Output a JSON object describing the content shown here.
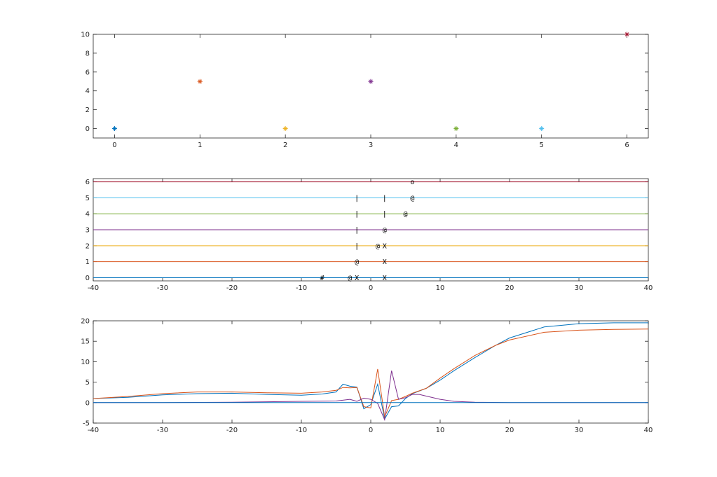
{
  "chart_data": [
    {
      "type": "scatter",
      "xlim": [
        -0.25,
        6.25
      ],
      "ylim": [
        -1,
        10
      ],
      "xticks": [
        0,
        1,
        2,
        3,
        4,
        5,
        6
      ],
      "yticks": [
        0,
        2,
        4,
        6,
        8,
        10
      ],
      "grid": false,
      "marker": "*",
      "points": [
        {
          "x": 0,
          "y": 0,
          "color": "#0072BD"
        },
        {
          "x": 1,
          "y": 5,
          "color": "#D95319"
        },
        {
          "x": 2,
          "y": 0,
          "color": "#EDB120"
        },
        {
          "x": 3,
          "y": 5,
          "color": "#7E2F8E"
        },
        {
          "x": 4,
          "y": 0,
          "color": "#77AC30"
        },
        {
          "x": 5,
          "y": 0,
          "color": "#4DBEEE"
        },
        {
          "x": 6,
          "y": 10,
          "color": "#A2142F"
        }
      ]
    },
    {
      "type": "line",
      "xlim": [
        -40,
        40
      ],
      "ylim": [
        -0.2,
        6.2
      ],
      "xticks": [
        -40,
        -30,
        -20,
        -10,
        0,
        10,
        20,
        30,
        40
      ],
      "yticks": [
        0,
        1,
        2,
        3,
        4,
        5,
        6
      ],
      "grid": false,
      "series": [
        {
          "y": 0,
          "color": "#0072BD"
        },
        {
          "y": 1,
          "color": "#D95319"
        },
        {
          "y": 2,
          "color": "#EDB120"
        },
        {
          "y": 3,
          "color": "#7E2F8E"
        },
        {
          "y": 4,
          "color": "#77AC30"
        },
        {
          "y": 5,
          "color": "#4DBEEE"
        },
        {
          "y": 6,
          "color": "#A2142F"
        }
      ],
      "annotations": [
        {
          "x": -7,
          "y": 0,
          "text": "#"
        },
        {
          "x": -3,
          "y": 0,
          "text": "@"
        },
        {
          "x": -2,
          "y": 0,
          "text": "X"
        },
        {
          "x": 2,
          "y": 0,
          "text": "X"
        },
        {
          "x": -2,
          "y": 1,
          "text": "@"
        },
        {
          "x": 2,
          "y": 1,
          "text": "X"
        },
        {
          "x": -2,
          "y": 2,
          "text": "|"
        },
        {
          "x": 1,
          "y": 2,
          "text": "@"
        },
        {
          "x": 2,
          "y": 2,
          "text": "X"
        },
        {
          "x": -2,
          "y": 3,
          "text": "|"
        },
        {
          "x": 2,
          "y": 3,
          "text": "@"
        },
        {
          "x": -2,
          "y": 4,
          "text": "|"
        },
        {
          "x": 2,
          "y": 4,
          "text": "|"
        },
        {
          "x": 5,
          "y": 4,
          "text": "@"
        },
        {
          "x": -2,
          "y": 5,
          "text": "|"
        },
        {
          "x": 2,
          "y": 5,
          "text": "|"
        },
        {
          "x": 6,
          "y": 5,
          "text": "@"
        },
        {
          "x": 6,
          "y": 6,
          "text": "o"
        }
      ]
    },
    {
      "type": "line",
      "xlim": [
        -40,
        40
      ],
      "ylim": [
        -5,
        20
      ],
      "xticks": [
        -40,
        -30,
        -20,
        -10,
        0,
        10,
        20,
        30,
        40
      ],
      "yticks": [
        -5,
        0,
        5,
        10,
        15,
        20
      ],
      "grid": false,
      "series": [
        {
          "color": "#0072BD",
          "points": [
            [
              -40,
              1
            ],
            [
              -35,
              1.3
            ],
            [
              -30,
              1.9
            ],
            [
              -25,
              2.2
            ],
            [
              -20,
              2.3
            ],
            [
              -15,
              2.0
            ],
            [
              -10,
              1.8
            ],
            [
              -7,
              2.1
            ],
            [
              -5,
              2.6
            ],
            [
              -4,
              4.5
            ],
            [
              -3,
              4.0
            ],
            [
              -2,
              3.8
            ],
            [
              -1,
              -1.5
            ],
            [
              0,
              -0.5
            ],
            [
              1,
              4.5
            ],
            [
              2,
              -4
            ],
            [
              3,
              -1
            ],
            [
              4,
              -0.8
            ],
            [
              5,
              1
            ],
            [
              6,
              2.2
            ],
            [
              8,
              3.5
            ],
            [
              10,
              5.5
            ],
            [
              12,
              7.8
            ],
            [
              15,
              11
            ],
            [
              18,
              14
            ],
            [
              20,
              15.8
            ],
            [
              25,
              18.5
            ],
            [
              30,
              19.3
            ],
            [
              35,
              19.5
            ],
            [
              40,
              19.5
            ]
          ]
        },
        {
          "color": "#D95319",
          "points": [
            [
              -40,
              1
            ],
            [
              -35,
              1.5
            ],
            [
              -30,
              2.2
            ],
            [
              -25,
              2.6
            ],
            [
              -20,
              2.6
            ],
            [
              -15,
              2.4
            ],
            [
              -10,
              2.3
            ],
            [
              -7,
              2.6
            ],
            [
              -5,
              3.0
            ],
            [
              -4,
              3.7
            ],
            [
              -3,
              3.6
            ],
            [
              -2,
              3.7
            ],
            [
              -1,
              -1.0
            ],
            [
              0,
              -1.3
            ],
            [
              1,
              8.2
            ],
            [
              2,
              -3.5
            ],
            [
              3,
              0.5
            ],
            [
              4,
              0.8
            ],
            [
              5,
              1.5
            ],
            [
              6,
              2.3
            ],
            [
              8,
              3.5
            ],
            [
              10,
              6
            ],
            [
              12,
              8.3
            ],
            [
              15,
              11.5
            ],
            [
              18,
              14
            ],
            [
              20,
              15.3
            ],
            [
              25,
              17.2
            ],
            [
              30,
              17.7
            ],
            [
              35,
              17.9
            ],
            [
              40,
              18
            ]
          ]
        },
        {
          "color": "#7E2F8E",
          "points": [
            [
              -40,
              0
            ],
            [
              -30,
              0
            ],
            [
              -20,
              0.1
            ],
            [
              -10,
              0.3
            ],
            [
              -5,
              0.4
            ],
            [
              -3,
              0.8
            ],
            [
              -2,
              0.3
            ],
            [
              -1,
              1.1
            ],
            [
              0,
              0.8
            ],
            [
              1,
              -0.2
            ],
            [
              2,
              -4.2
            ],
            [
              3,
              7.8
            ],
            [
              4,
              0.8
            ],
            [
              5,
              1.2
            ],
            [
              6,
              2.0
            ],
            [
              7,
              2.0
            ],
            [
              8,
              1.6
            ],
            [
              10,
              0.8
            ],
            [
              12,
              0.3
            ],
            [
              15,
              0.1
            ],
            [
              20,
              0
            ],
            [
              40,
              0
            ]
          ]
        },
        {
          "color": "#0072BD",
          "points": [
            [
              -40,
              0
            ],
            [
              40,
              0
            ]
          ]
        }
      ]
    }
  ]
}
